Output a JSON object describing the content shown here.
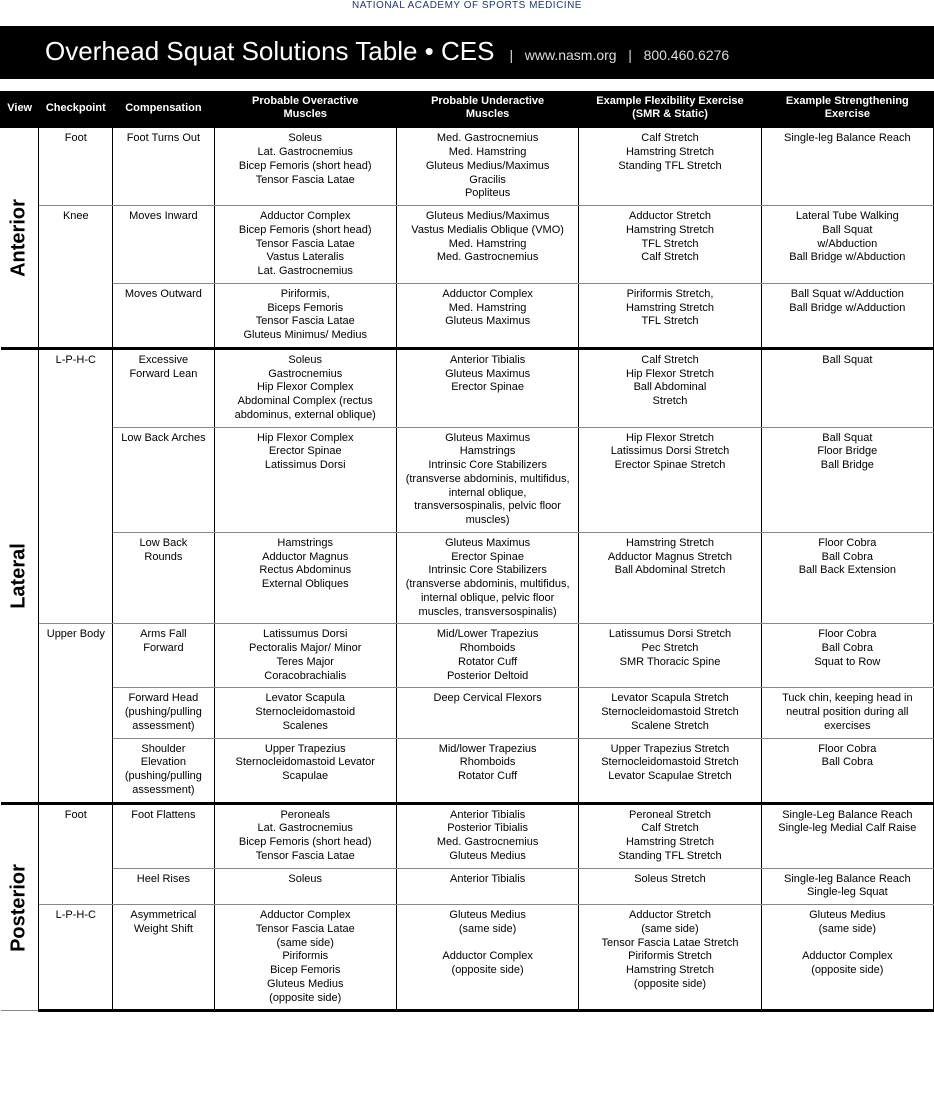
{
  "tagline": "NATIONAL ACADEMY OF SPORTS MEDICINE",
  "header": {
    "title": "Overhead Squat Solutions Table • CES",
    "url": "www.nasm.org",
    "phone": "800.460.6276",
    "separator": "|"
  },
  "columns": [
    "View",
    "Checkpoint",
    "Compensation",
    "Probable Overactive\nMuscles",
    "Probable Underactive\nMuscles",
    "Example Flexibility Exercise\n(SMR & Static)",
    "Example Strengthening\nExercise"
  ],
  "sections": [
    {
      "view": "Anterior",
      "rows": [
        {
          "checkpoint": "Foot",
          "compensation": "Foot Turns Out",
          "overactive": "Soleus\nLat. Gastrocnemius\nBicep Femoris (short head)\nTensor Fascia Latae",
          "underactive": "Med. Gastrocnemius\nMed. Hamstring\nGluteus Medius/Maximus\nGracilis\nPopliteus",
          "flex": "Calf Stretch\nHamstring Stretch\nStanding TFL Stretch",
          "strength": "Single-leg Balance Reach"
        },
        {
          "checkpoint": "Knee",
          "checkpointSpan": 2,
          "compensation": "Moves Inward",
          "overactive": "Adductor Complex\nBicep Femoris (short head)\nTensor Fascia Latae\nVastus Lateralis\nLat. Gastrocnemius",
          "underactive": "Gluteus Medius/Maximus\nVastus Medialis Oblique (VMO)\nMed. Hamstring\nMed. Gastrocnemius",
          "flex": "Adductor Stretch\nHamstring Stretch\nTFL Stretch\nCalf Stretch",
          "strength": "Lateral Tube Walking\nBall Squat\nw/Abduction\nBall Bridge w/Abduction"
        },
        {
          "compensation": "Moves Outward",
          "overactive": "Piriformis,\nBiceps Femoris\nTensor Fascia Latae\nGluteus Minimus/ Medius",
          "underactive": "Adductor Complex\nMed. Hamstring\nGluteus Maximus",
          "flex": "Piriformis Stretch,\nHamstring Stretch\nTFL Stretch",
          "strength": "Ball Squat w/Adduction\nBall Bridge w/Adduction"
        }
      ]
    },
    {
      "view": "Lateral",
      "rows": [
        {
          "checkpoint": "L-P-H-C",
          "checkpointSpan": 3,
          "compensation": "Excessive\nForward Lean",
          "overactive": "Soleus\nGastrocnemius\nHip Flexor Complex\nAbdominal Complex (rectus abdominus, external oblique)",
          "underactive": "Anterior Tibialis\nGluteus Maximus\nErector Spinae",
          "flex": "Calf Stretch\nHip Flexor Stretch\nBall Abdominal\nStretch",
          "strength": "Ball Squat"
        },
        {
          "compensation": "Low Back Arches",
          "overactive": "Hip Flexor Complex\nErector Spinae\nLatissimus Dorsi",
          "underactive": "Gluteus Maximus\nHamstrings\nIntrinsic Core Stabilizers (transverse abdominis, multifidus, internal oblique, transversospinalis, pelvic floor muscles)",
          "flex": "Hip Flexor Stretch\nLatissimus Dorsi Stretch\nErector Spinae Stretch",
          "strength": "Ball Squat\nFloor Bridge\nBall Bridge"
        },
        {
          "compensation": "Low Back Rounds",
          "overactive": "Hamstrings\nAdductor Magnus\nRectus Abdominus\nExternal Obliques",
          "underactive": "Gluteus Maximus\nErector Spinae\nIntrinsic Core Stabilizers (transverse abdominis, multifidus, internal oblique, pelvic floor muscles, transversospinalis)",
          "flex": "Hamstring Stretch\nAdductor Magnus Stretch\nBall Abdominal Stretch",
          "strength": "Floor Cobra\nBall Cobra\nBall Back Extension"
        },
        {
          "checkpoint": "Upper Body",
          "checkpointSpan": 3,
          "compensation": "Arms Fall Forward",
          "overactive": "Latissumus Dorsi\nPectoralis Major/ Minor\nTeres Major\nCoracobrachialis",
          "underactive": "Mid/Lower Trapezius\nRhomboids\nRotator Cuff\nPosterior Deltoid",
          "flex": "Latissumus Dorsi Stretch\nPec Stretch\nSMR Thoracic Spine",
          "strength": "Floor Cobra\nBall Cobra\nSquat to Row"
        },
        {
          "compensation": "Forward Head\n(pushing/pulling assessment)",
          "overactive": "Levator Scapula\nSternocleidomastoid\nScalenes",
          "underactive": "Deep Cervical Flexors",
          "flex": "Levator Scapula Stretch\nSternocleidomastoid Stretch\nScalene Stretch",
          "strength": "Tuck chin, keeping head in neutral position during all exercises"
        },
        {
          "compensation": "Shoulder Elevation\n(pushing/pulling assessment)",
          "overactive": "Upper Trapezius\nSternocleidomastoid Levator Scapulae",
          "underactive": "Mid/lower Trapezius\nRhomboids\nRotator Cuff",
          "flex": "Upper Trapezius Stretch\nSternocleidomastoid Stretch\nLevator Scapulae Stretch",
          "strength": "Floor Cobra\nBall Cobra"
        }
      ]
    },
    {
      "view": "Posterior",
      "rows": [
        {
          "checkpoint": "Foot",
          "checkpointSpan": 2,
          "compensation": "Foot Flattens",
          "overactive": "Peroneals\nLat. Gastrocnemius\nBicep Femoris (short head)\nTensor Fascia Latae",
          "underactive": "Anterior Tibialis\nPosterior Tibialis\nMed. Gastrocnemius\nGluteus Medius",
          "flex": "Peroneal Stretch\nCalf Stretch\nHamstring Stretch\nStanding TFL Stretch",
          "strength": "Single-Leg Balance Reach\nSingle-leg Medial Calf Raise"
        },
        {
          "compensation": "Heel Rises",
          "overactive": "Soleus",
          "underactive": "Anterior Tibialis",
          "flex": "Soleus Stretch",
          "strength": "Single-leg Balance Reach\nSingle-leg Squat"
        },
        {
          "checkpoint": "L-P-H-C",
          "compensation": "Asymmetrical\nWeight Shift",
          "overactive": "Adductor Complex\nTensor Fascia Latae\n(same side)\nPiriformis\nBicep Femoris\nGluteus Medius\n(opposite side)",
          "underactive": "Gluteus Medius\n(same side)\n\nAdductor Complex\n(opposite side)",
          "flex": "Adductor Stretch\n(same side)\nTensor Fascia Latae Stretch\nPiriformis Stretch\nHamstring Stretch\n(opposite side)",
          "strength": "Gluteus Medius\n(same side)\n\nAdductor Complex\n(opposite side)"
        }
      ]
    }
  ]
}
